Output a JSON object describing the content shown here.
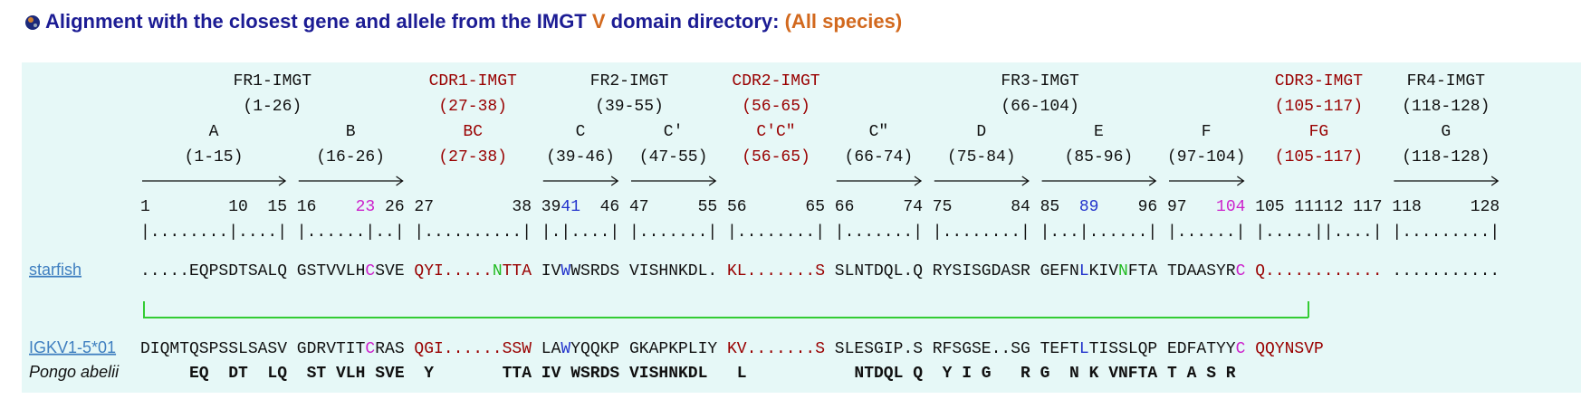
{
  "title": [
    {
      "text": "Alignment with the closest gene and allele from the IMGT ",
      "color": "#1c1c94"
    },
    {
      "text": "V",
      "color": "#d2691e"
    },
    {
      "text": " domain directory: ",
      "color": "#1c1c94"
    },
    {
      "text": "(All species)",
      "color": "#d2691e"
    }
  ],
  "regions": [
    {
      "name": "FR1-IMGT",
      "range": "(1-26)",
      "cdr": false,
      "segments": [
        {
          "name": "A",
          "range": "(1-15)",
          "numbers": [
            "1        10  15"
          ],
          "ruler": "|........|....|"
        },
        {
          "name": "B",
          "range": "(16-26)",
          "numbers": [
            "16    ",
            {
              "text": "23",
              "color": "#cc22cc"
            },
            " 26"
          ],
          "ruler": "|......|..|"
        }
      ]
    },
    {
      "name": "CDR1-IMGT",
      "range": "(27-38)",
      "cdr": true,
      "segments": [
        {
          "name": "BC",
          "range": "(27-38)",
          "numbers": [
            "27        38"
          ],
          "ruler": "|..........|"
        }
      ]
    },
    {
      "name": "FR2-IMGT",
      "range": "(39-55)",
      "cdr": false,
      "segments": [
        {
          "name": "C",
          "range": "(39-46)",
          "numbers": [
            "39",
            {
              "text": "41",
              "color": "#2233cc"
            },
            "  46"
          ],
          "ruler": "|.|....|"
        },
        {
          "name": "C'",
          "range": "(47-55)",
          "numbers": [
            "47     55"
          ],
          "ruler": "|.......|"
        }
      ]
    },
    {
      "name": "CDR2-IMGT",
      "range": "(56-65)",
      "cdr": true,
      "segments": [
        {
          "name": "C'C\"",
          "range": "(56-65)",
          "numbers": [
            "56      65"
          ],
          "ruler": "|........|"
        }
      ]
    },
    {
      "name": "FR3-IMGT",
      "range": "(66-104)",
      "cdr": false,
      "segments": [
        {
          "name": "C\"",
          "range": "(66-74)",
          "numbers": [
            "66     74"
          ],
          "ruler": "|.......|"
        },
        {
          "name": "D",
          "range": "(75-84)",
          "numbers": [
            "75      84"
          ],
          "ruler": "|........|"
        },
        {
          "name": "E",
          "range": "(85-96)",
          "numbers": [
            "85  ",
            {
              "text": "89",
              "color": "#2233cc"
            },
            "    96"
          ],
          "ruler": "|...|......|"
        },
        {
          "name": "F",
          "range": "(97-104)",
          "numbers": [
            "97   ",
            {
              "text": "104",
              "color": "#cc22cc"
            }
          ],
          "ruler": "|......|"
        }
      ]
    },
    {
      "name": "CDR3-IMGT",
      "range": "(105-117)",
      "cdr": true,
      "segments": [
        {
          "name": "FG",
          "range": "(105-117)",
          "numbers": [
            "105 11112 117"
          ],
          "ruler": "|.....||....|"
        }
      ]
    },
    {
      "name": "FR4-IMGT",
      "range": "(118-128)",
      "cdr": false,
      "segments": [
        {
          "name": "G",
          "range": "(118-128)",
          "numbers": [
            "118     128"
          ],
          "ruler": "|.........|"
        }
      ]
    }
  ],
  "sequences": [
    {
      "name": "starfish",
      "segments": [
        [
          ".....EQPSDTSALQ"
        ],
        [
          "GSTVVLH",
          {
            "text": "C",
            "color": "#cc22cc"
          },
          "SVE"
        ],
        [
          "QYI.....",
          {
            "text": "N",
            "color": "#22bb22"
          },
          "TTA"
        ],
        [
          "IV",
          {
            "text": "W",
            "color": "#2233cc"
          },
          "WSRDS"
        ],
        [
          "VISHNKDL."
        ],
        [
          "KL.......S"
        ],
        [
          "SLNTDQL.Q"
        ],
        [
          "RYSISGDASR"
        ],
        [
          "GEFN",
          {
            "text": "L",
            "color": "#2233cc"
          },
          "KIV",
          {
            "text": "N",
            "color": "#22bb22"
          },
          "FTA"
        ],
        [
          "TDAASYR",
          {
            "text": "C",
            "color": "#cc22cc"
          }
        ],
        [
          "Q............"
        ],
        [
          "..........."
        ]
      ]
    },
    {
      "name": "IGKV1-5*01",
      "segments": [
        [
          "DIQMTQSPSSLSASV"
        ],
        [
          "GDRVTIT",
          {
            "text": "C",
            "color": "#cc22cc"
          },
          "RAS"
        ],
        [
          "QGI......SSW"
        ],
        [
          "LA",
          {
            "text": "W",
            "color": "#2233cc"
          },
          "YQQKP"
        ],
        [
          "GKAPKPLIY"
        ],
        [
          "KV.......S"
        ],
        [
          "SLESGIP.S"
        ],
        [
          "RFSGSE..SG"
        ],
        [
          "TEFT",
          {
            "text": "L",
            "color": "#2233cc"
          },
          "TISSLQP"
        ],
        [
          "EDFATYY",
          {
            "text": "C",
            "color": "#cc22cc"
          }
        ],
        [
          "QQYNSVP"
        ]
      ]
    },
    {
      "name": "Pongo abelii",
      "segments": [
        [
          "     EQ  DT  LQ"
        ],
        [
          " ST VLH SVE"
        ],
        [
          " Y       TTA"
        ],
        [
          "IV WSRDS"
        ],
        [
          "VISHNKDL"
        ],
        [
          " L"
        ],
        [
          "  NTDQL Q"
        ],
        [
          " Y I G   R"
        ],
        [
          "G  N K VNFTA"
        ],
        [
          "T A S R"
        ]
      ]
    }
  ]
}
